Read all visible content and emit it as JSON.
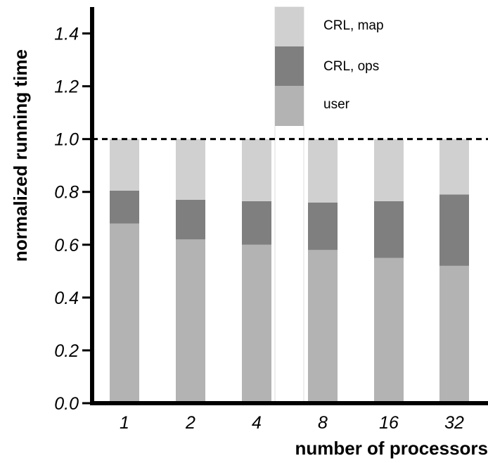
{
  "chart_data": {
    "type": "bar",
    "stacked": true,
    "categories": [
      "1",
      "2",
      "4",
      "8",
      "16",
      "32"
    ],
    "series": [
      {
        "name": "user",
        "color": "#b3b3b3",
        "values": [
          0.68,
          0.62,
          0.6,
          0.58,
          0.55,
          0.52
        ]
      },
      {
        "name": "CRL, ops",
        "color": "#7f7f7f",
        "values": [
          0.125,
          0.15,
          0.165,
          0.18,
          0.215,
          0.27
        ]
      },
      {
        "name": "CRL, map",
        "color": "#d0d0d0",
        "values": [
          0.195,
          0.23,
          0.235,
          0.24,
          0.235,
          0.21
        ]
      }
    ],
    "xlabel": "number of processors",
    "ylabel": "normalized running time",
    "ylim": [
      0.0,
      1.5
    ],
    "yticks": [
      "0.0",
      "0.2",
      "0.4",
      "0.6",
      "0.8",
      "1.0",
      "1.2",
      "1.4"
    ],
    "reference_line": {
      "value": 1.0,
      "style": "dashed"
    },
    "legend_position": "top-center",
    "grid": false
  }
}
